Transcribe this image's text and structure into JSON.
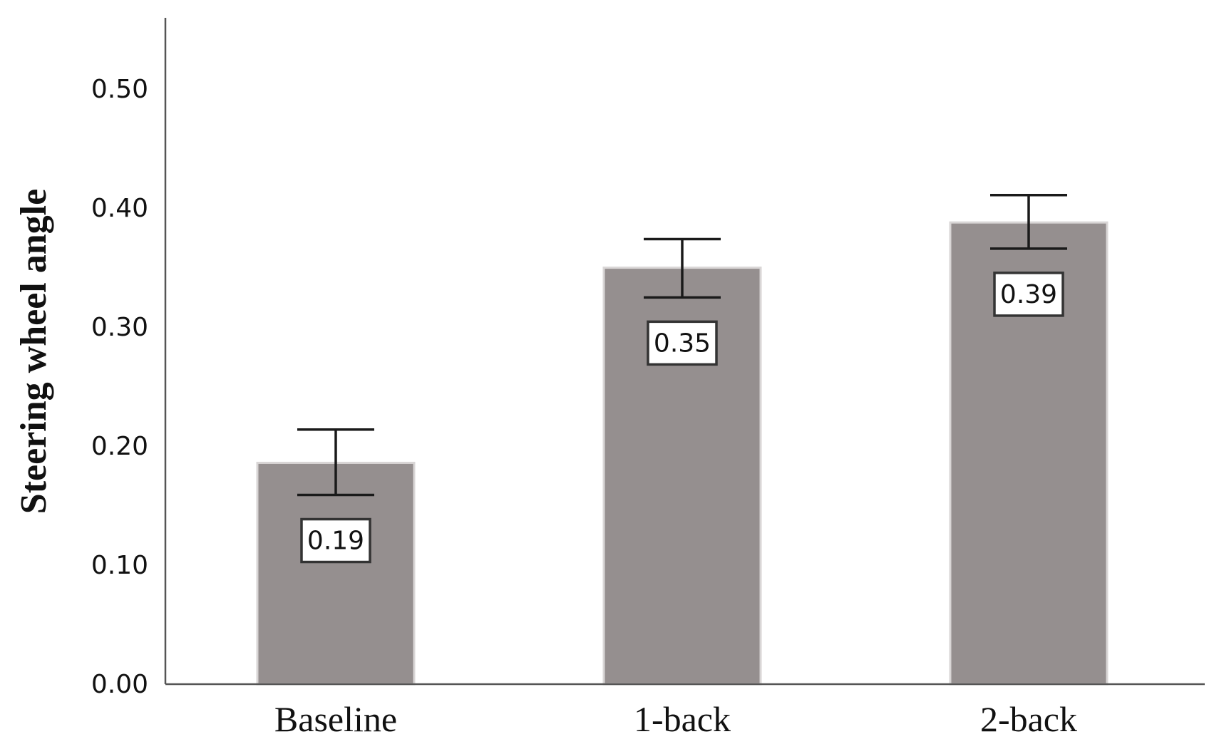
{
  "chart_data": {
    "type": "bar",
    "title": "",
    "xlabel": "",
    "ylabel": "Steering wheel angle",
    "categories": [
      "Baseline",
      "1-back",
      "2-back"
    ],
    "values": [
      0.186,
      0.35,
      0.388
    ],
    "data_labels": [
      "0.19",
      "0.35",
      "0.39"
    ],
    "error_low": [
      0.159,
      0.325,
      0.366
    ],
    "error_high": [
      0.214,
      0.374,
      0.411
    ],
    "ylim": [
      0,
      0.56
    ],
    "yticks": [
      0.0,
      0.1,
      0.2,
      0.3,
      0.4,
      0.5
    ],
    "ytick_labels": [
      "0.00",
      "0.10",
      "0.20",
      "0.30",
      "0.40",
      "0.50"
    ],
    "grid": false,
    "legend": "none",
    "colors": {
      "bar": "#958f8f",
      "bar_edge": "#d9d6d6",
      "axis": "#555555",
      "error_bar": "#1a1a1a",
      "label_box_border": "#333333"
    }
  }
}
